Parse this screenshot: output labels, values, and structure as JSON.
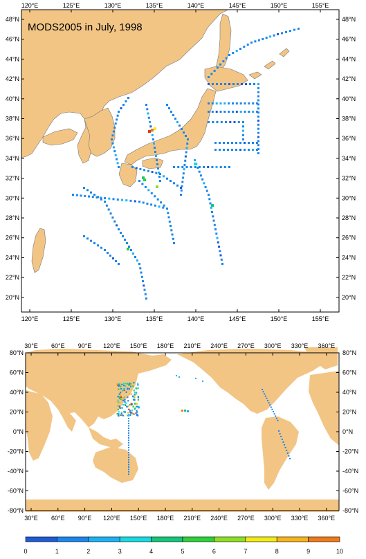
{
  "map1": {
    "title": "MODS2005 in July, 1998",
    "lon_ticks": [
      "120°E",
      "125°E",
      "130°E",
      "135°E",
      "140°E",
      "145°E",
      "150°E",
      "155°E"
    ],
    "lat_ticks": [
      "48°N",
      "46°N",
      "44°N",
      "42°N",
      "40°N",
      "38°N",
      "36°N",
      "34°N",
      "32°N",
      "30°N",
      "28°N",
      "26°N",
      "24°N",
      "22°N",
      "20°N"
    ],
    "extent": {
      "lon": [
        119,
        158
      ],
      "lat": [
        18.8,
        49.5
      ]
    },
    "colors": {
      "land": "#f2c585",
      "ocean": "#ffffff",
      "coast": "#555555"
    }
  },
  "map2": {
    "lon_ticks": [
      "30°E",
      "60°E",
      "90°E",
      "120°E",
      "150°E",
      "180°E",
      "210°E",
      "240°E",
      "270°E",
      "300°E",
      "330°E",
      "360°E"
    ],
    "lat_ticks": [
      "80°N",
      "60°N",
      "40°N",
      "20°N",
      "0°N",
      "-20°N",
      "-40°N",
      "-60°N",
      "-80°N"
    ],
    "extent": {
      "lon": [
        20,
        370
      ],
      "lat": [
        -80,
        80
      ]
    }
  },
  "colorbar": {
    "labels": [
      "0",
      "1",
      "2",
      "3",
      "4",
      "5",
      "6",
      "7",
      "8",
      "9",
      "10"
    ],
    "colors": [
      "#1e5bd8",
      "#1a86ee",
      "#19b2f5",
      "#14dbe0",
      "#10c878",
      "#2bd23a",
      "#8ce020",
      "#f0ec10",
      "#f7b516",
      "#f07a18",
      "#e03a12"
    ]
  }
}
